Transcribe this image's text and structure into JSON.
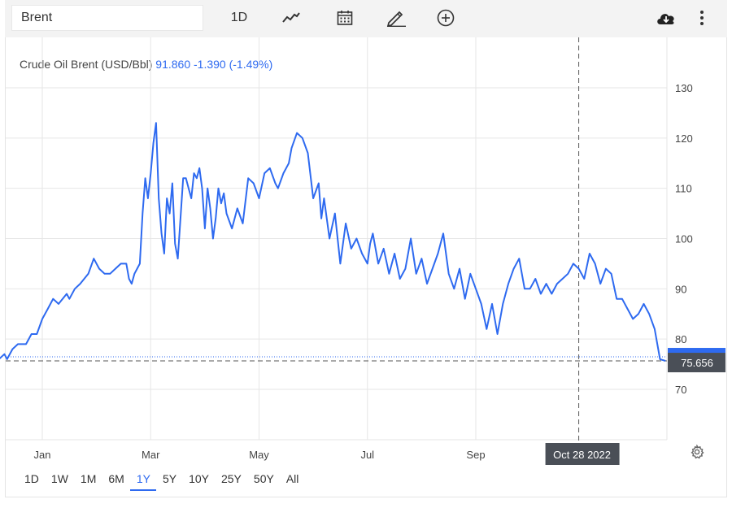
{
  "toolbar": {
    "search_value": "Brent",
    "interval_label": "1D"
  },
  "header": {
    "series_name": "Crude Oil Brent (USD/Bbl)",
    "last_value": "91.860",
    "change": "-1.390",
    "change_pct": "(-1.49%)"
  },
  "range_buttons": [
    {
      "label": "1D",
      "active": false
    },
    {
      "label": "1W",
      "active": false
    },
    {
      "label": "1M",
      "active": false
    },
    {
      "label": "6M",
      "active": false
    },
    {
      "label": "1Y",
      "active": true
    },
    {
      "label": "5Y",
      "active": false
    },
    {
      "label": "10Y",
      "active": false
    },
    {
      "label": "25Y",
      "active": false
    },
    {
      "label": "50Y",
      "active": false
    },
    {
      "label": "All",
      "active": false
    }
  ],
  "colors": {
    "line": "#2e6af0",
    "grid": "#e6e6e6",
    "label_bg": "#4a4f57",
    "price_tag": "#2e6af0"
  },
  "chart_data": {
    "type": "line",
    "ylim": [
      57,
      140
    ],
    "yticks": [
      70,
      80,
      90,
      100,
      110,
      120,
      130
    ],
    "x_tick_labels": [
      "Jan",
      "Mar",
      "May",
      "Jul",
      "Sep"
    ],
    "x_tick_months": [
      1,
      3,
      5,
      7,
      9
    ],
    "crosshair_label": "Oct 28 2022",
    "crosshair_month": 10.9,
    "current_value_label": "75.656",
    "current_value": 75.656,
    "series": [
      {
        "x": [
          -0.2,
          -0.1,
          0.0,
          0.05,
          0.12,
          0.2,
          0.3,
          0.35,
          0.45,
          0.55,
          0.7,
          0.8,
          0.9,
          1.0,
          1.1,
          1.2,
          1.3,
          1.45,
          1.5,
          1.6,
          1.7,
          1.85,
          1.95,
          2.05,
          2.15,
          2.25,
          2.35,
          2.45,
          2.55,
          2.6,
          2.65,
          2.7,
          2.75,
          2.8,
          2.85,
          2.9,
          2.95,
          3.0,
          3.05,
          3.1,
          3.15,
          3.2,
          3.25,
          3.3,
          3.35,
          3.4,
          3.45,
          3.5,
          3.55,
          3.6,
          3.65,
          3.7,
          3.75,
          3.8,
          3.85,
          3.9,
          3.95,
          4.0,
          4.05,
          4.1,
          4.15,
          4.2,
          4.25,
          4.3,
          4.35,
          4.4,
          4.5,
          4.6,
          4.7,
          4.8,
          4.9,
          5.0,
          5.1,
          5.2,
          5.3,
          5.35,
          5.45,
          5.55,
          5.6,
          5.7,
          5.8,
          5.9,
          6.0,
          6.1,
          6.15,
          6.2,
          6.3,
          6.4,
          6.5,
          6.6,
          6.7,
          6.8,
          6.9,
          7.0,
          7.05,
          7.1,
          7.2,
          7.3,
          7.4,
          7.5,
          7.6,
          7.7,
          7.8,
          7.9,
          8.0,
          8.1,
          8.2,
          8.3,
          8.4,
          8.5,
          8.6,
          8.7,
          8.8,
          8.9,
          9.0,
          9.1,
          9.2,
          9.3,
          9.4,
          9.5,
          9.6,
          9.7,
          9.8,
          9.9,
          10.0,
          10.1,
          10.2,
          10.3,
          10.4,
          10.5,
          10.6,
          10.7,
          10.8,
          10.9,
          11.0,
          11.1,
          11.2,
          11.3,
          11.4,
          11.5,
          11.6,
          11.7,
          11.8,
          11.9,
          12.0,
          12.1,
          12.2,
          12.3,
          12.4,
          12.5
        ],
        "values": [
          75,
          74,
          76,
          73,
          72,
          76,
          77,
          76,
          78,
          79,
          79,
          81,
          81,
          84,
          86,
          88,
          87,
          89,
          88,
          90,
          91,
          93,
          96,
          94,
          93,
          93,
          94,
          95,
          95,
          92,
          91,
          93,
          94,
          95,
          105,
          112,
          108,
          113,
          119,
          123,
          108,
          101,
          97,
          108,
          105,
          111,
          99,
          96,
          104,
          112,
          112,
          110,
          108,
          113,
          112,
          114,
          110,
          102,
          110,
          106,
          100,
          104,
          110,
          107,
          109,
          105,
          102,
          106,
          103,
          112,
          111,
          108,
          113,
          114,
          111,
          110,
          113,
          115,
          118,
          121,
          120,
          117,
          108,
          111,
          104,
          108,
          100,
          105,
          95,
          103,
          98,
          100,
          97,
          95,
          99,
          101,
          95,
          98,
          93,
          97,
          92,
          94,
          100,
          93,
          96,
          91,
          94,
          97,
          101,
          93,
          90,
          94,
          88,
          93,
          90,
          87,
          82,
          87,
          81,
          87,
          91,
          94,
          96,
          90,
          90,
          92,
          89,
          91,
          89,
          91,
          92,
          93,
          95,
          94,
          92,
          97,
          95,
          91,
          94,
          93,
          88,
          88,
          86,
          84,
          85,
          87,
          85,
          82,
          76,
          75.656
        ]
      }
    ]
  }
}
